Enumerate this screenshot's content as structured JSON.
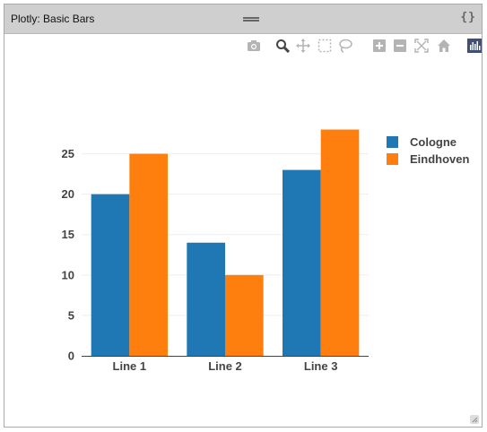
{
  "panel": {
    "title": "Plotly: Basic Bars",
    "code_toggle": "{}"
  },
  "modebar": {
    "icons": [
      "camera-icon",
      "zoom-icon",
      "pan-icon",
      "box-select-icon",
      "lasso-icon",
      "zoom-in-icon",
      "zoom-out-icon",
      "autoscale-icon",
      "reset-axes-icon",
      "plotly-logo-icon"
    ]
  },
  "colors": {
    "cologne": "#1f77b4",
    "eindhoven": "#ff7f0e",
    "modebar_icon": "#b4b4b4",
    "modebar_active": "#444444"
  },
  "chart_data": {
    "type": "bar",
    "categories": [
      "Line 1",
      "Line 2",
      "Line 3"
    ],
    "series": [
      {
        "name": "Cologne",
        "values": [
          20,
          14,
          23
        ]
      },
      {
        "name": "Eindhoven",
        "values": [
          25,
          10,
          28
        ]
      }
    ],
    "yticks": [
      0,
      5,
      10,
      15,
      20,
      25
    ],
    "ylim": [
      0,
      29.5
    ],
    "grid": true,
    "legend_position": "top-right"
  }
}
